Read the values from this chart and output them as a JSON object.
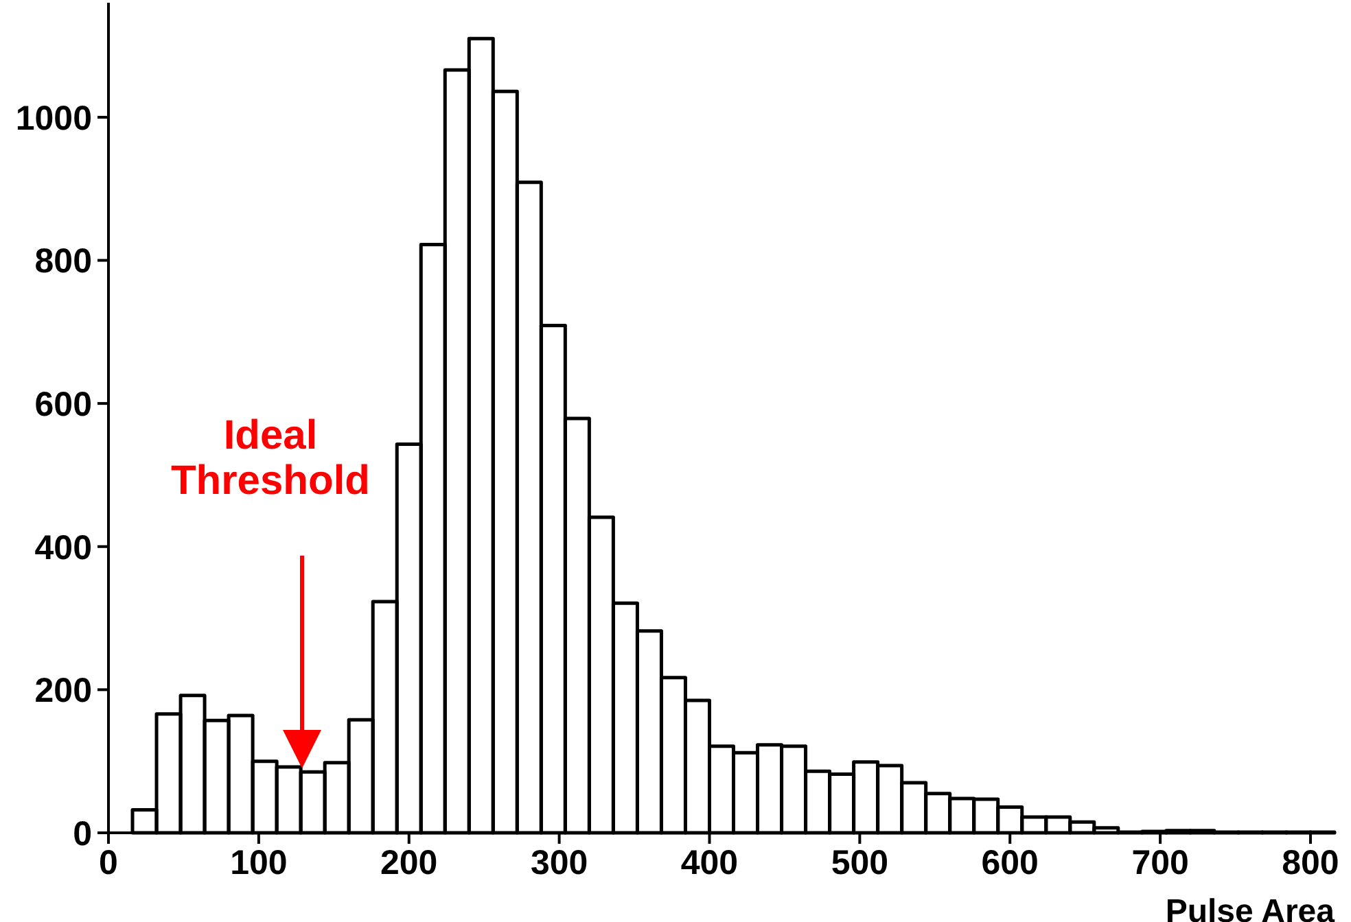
{
  "chart_data": {
    "type": "histogram",
    "xlabel": "Pulse Area",
    "bins": [
      0,
      16,
      32,
      48,
      64,
      80,
      96,
      112,
      128,
      144,
      160,
      176,
      192,
      208,
      224,
      240,
      256,
      272,
      288,
      304,
      320,
      336,
      352,
      368,
      384,
      400,
      416,
      432,
      448,
      464,
      480,
      496,
      512,
      528,
      544,
      560,
      576,
      592,
      608,
      624,
      640,
      656,
      672,
      688,
      704,
      720,
      736,
      752,
      768,
      784,
      800,
      816
    ],
    "values": [
      0,
      32,
      166,
      192,
      157,
      164,
      100,
      92,
      85,
      98,
      158,
      323,
      543,
      822,
      1066,
      1110,
      1036,
      909,
      709,
      579,
      441,
      321,
      282,
      217,
      185,
      121,
      112,
      123,
      121,
      86,
      82,
      99,
      94,
      70,
      55,
      48,
      47,
      36,
      22,
      22,
      15,
      7,
      1,
      2,
      3,
      3,
      1,
      1,
      1,
      1,
      1
    ],
    "color": "#000000",
    "xlim": [
      0,
      816
    ],
    "xticks": [
      0,
      100,
      200,
      300,
      400,
      500,
      600,
      700,
      800
    ],
    "ylim": [
      0,
      1160
    ],
    "yticks": [
      0,
      200,
      400,
      600,
      800,
      1000
    ],
    "annotations": [
      "Ideal Threshold"
    ]
  }
}
